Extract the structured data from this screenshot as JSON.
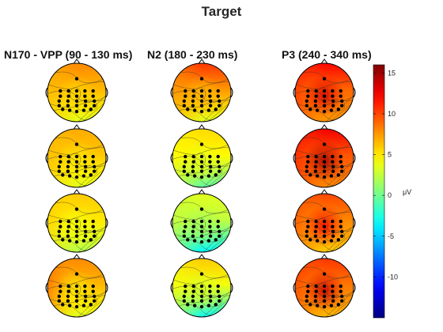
{
  "title": "Target",
  "chart_data": {
    "type": "heatmap",
    "title": "Target",
    "columns": [
      "N170 - VPP (90 - 130 ms)",
      "N2 (180 - 230 ms)",
      "P3 (240 - 340 ms)"
    ],
    "rows": 4,
    "maps": [
      [
        {
          "base": 6.5,
          "front": 1.5,
          "back": -3.0,
          "left": 0.0,
          "center": -1.0
        },
        {
          "base": 6.0,
          "front": 1.0,
          "back": -2.5,
          "left": 0.5,
          "center": -1.0
        },
        {
          "base": 5.0,
          "front": 1.0,
          "back": -3.0,
          "left": 1.0,
          "center": -1.0
        },
        {
          "base": 6.5,
          "front": 1.5,
          "back": -3.0,
          "left": 3.0,
          "center": -1.5
        }
      ],
      [
        {
          "base": 7.5,
          "front": 3.0,
          "back": -4.0,
          "left": 0.0,
          "center": -1.0
        },
        {
          "base": 4.5,
          "front": 1.0,
          "back": -5.0,
          "left": 0.0,
          "center": -1.0
        },
        {
          "base": 2.5,
          "front": 1.0,
          "back": -6.0,
          "left": 0.0,
          "center": -1.0
        },
        {
          "base": 4.0,
          "front": 2.0,
          "back": -7.0,
          "left": 0.0,
          "center": -1.0
        }
      ],
      [
        {
          "base": 9.0,
          "front": 3.0,
          "back": -1.5,
          "left": 2.0,
          "center": 4.0
        },
        {
          "base": 9.5,
          "front": 3.0,
          "back": -1.5,
          "left": 2.0,
          "center": 5.0
        },
        {
          "base": 8.0,
          "front": 2.0,
          "back": -2.0,
          "left": 2.0,
          "center": 4.0
        },
        {
          "base": 8.5,
          "front": 2.0,
          "back": -2.0,
          "left": 2.0,
          "center": 5.0
        }
      ]
    ],
    "colorbar": {
      "ticks": [
        15,
        10,
        5,
        0,
        -5,
        -10
      ],
      "range": [
        -15,
        16
      ],
      "unit": "μV",
      "colormap": "jet"
    },
    "electrodes": [
      [
        0.0,
        -0.45
      ],
      [
        -0.28,
        -0.05
      ],
      [
        -0.14,
        -0.05
      ],
      [
        0.0,
        -0.05
      ],
      [
        0.14,
        -0.05
      ],
      [
        0.28,
        -0.05
      ],
      [
        -0.28,
        0.12
      ],
      [
        -0.14,
        0.12
      ],
      [
        0.0,
        0.12
      ],
      [
        0.14,
        0.12
      ],
      [
        0.28,
        0.12
      ],
      [
        -0.3,
        0.28
      ],
      [
        -0.15,
        0.28
      ],
      [
        0.0,
        0.28
      ],
      [
        0.15,
        0.28
      ],
      [
        0.3,
        0.28
      ],
      [
        -0.3,
        0.43
      ],
      [
        -0.15,
        0.43
      ],
      [
        0.0,
        0.43
      ],
      [
        0.15,
        0.43
      ],
      [
        0.3,
        0.43
      ],
      [
        -0.12,
        0.58
      ],
      [
        0.12,
        0.58
      ],
      [
        0.0,
        0.62
      ],
      [
        -0.24,
        0.55
      ],
      [
        0.24,
        0.55
      ]
    ]
  }
}
